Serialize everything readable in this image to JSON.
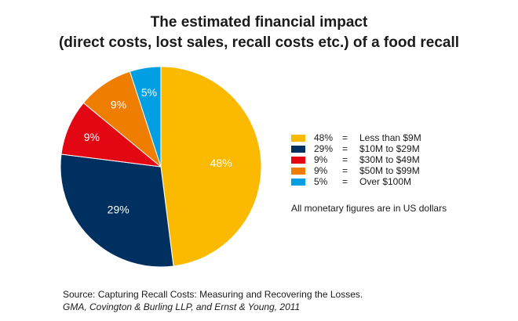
{
  "chart_data": {
    "type": "pie",
    "title_lines": [
      "The estimated financial impact",
      "(direct costs, lost sales, recall costs etc.) of a food recall"
    ],
    "slices": [
      {
        "label": "48%",
        "value": 48,
        "legend": "Less than $9M",
        "color": "#FBB900"
      },
      {
        "label": "29%",
        "value": 29,
        "legend": "$10M to $29M",
        "color": "#00305F"
      },
      {
        "label": "9%",
        "value": 9,
        "legend": "$30M to $49M",
        "color": "#E30613"
      },
      {
        "label": "9%",
        "value": 9,
        "legend": "$50M to $99M",
        "color": "#EF7D00"
      },
      {
        "label": "5%",
        "value": 5,
        "legend": "Over $100M",
        "color": "#009FE3"
      }
    ],
    "legend_separator": "=",
    "legend_placement": "right",
    "note": "All monetary figures are in US dollars"
  },
  "source": {
    "line1": "Source: Capturing Recall Costs: Measuring and Recovering the Losses.",
    "line2": "GMA, Covington & Burling LLP, and Ernst & Young, 2011"
  }
}
